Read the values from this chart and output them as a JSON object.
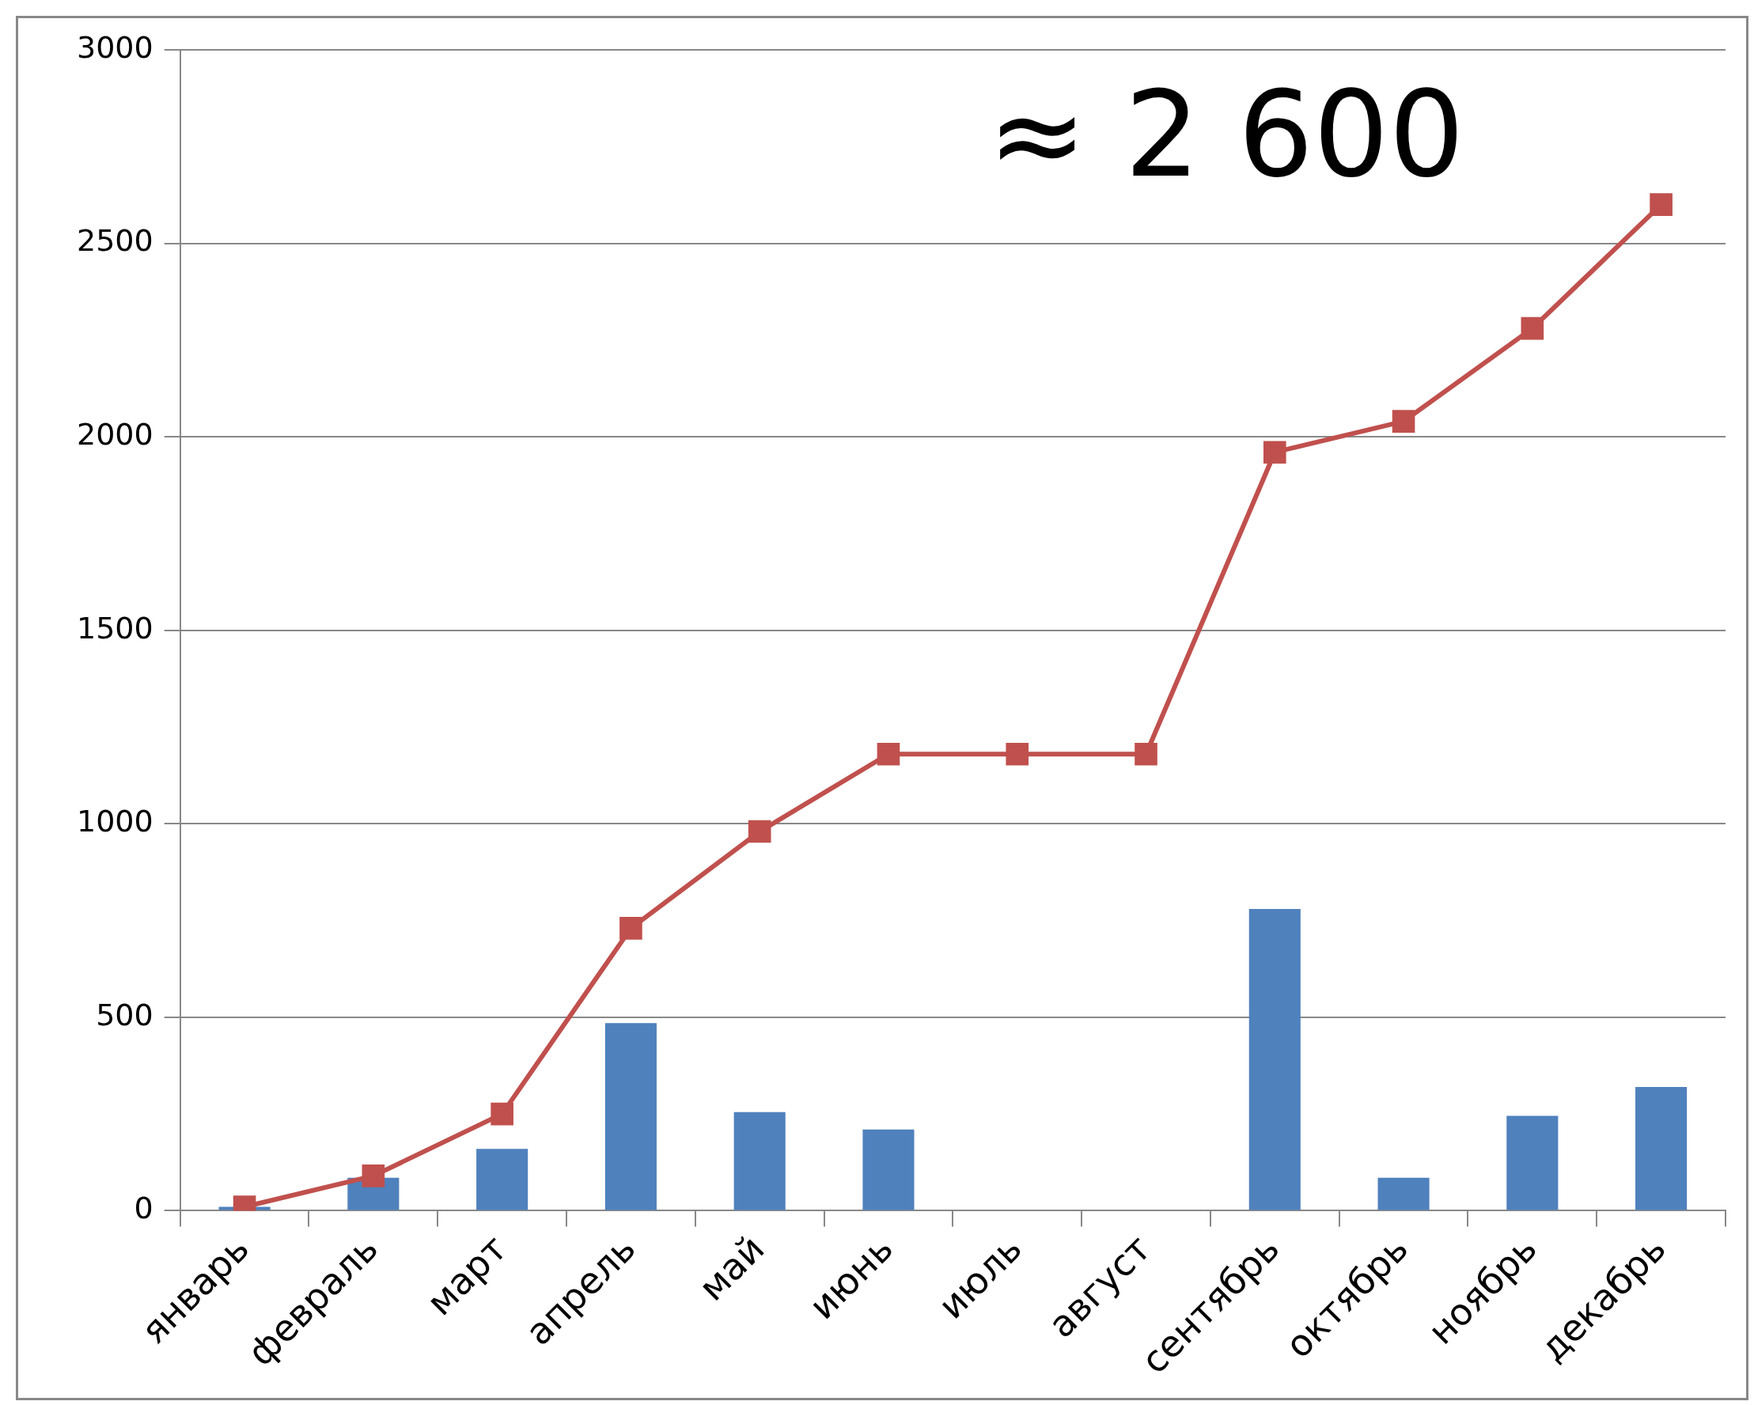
{
  "chart_data": {
    "type": "bar",
    "categories": [
      "январь",
      "февраль",
      "март",
      "апрель",
      "май",
      "июнь",
      "июль",
      "август",
      "сентябрь",
      "октябрь",
      "ноябрь",
      "декабрь"
    ],
    "series": [
      {
        "color": "#4f81bd",
        "values": [
          10,
          85,
          160,
          485,
          255,
          210,
          0,
          0,
          780,
          85,
          245,
          320
        ]
      },
      {
        "type": "line",
        "color": "#c0504d",
        "marker": "square",
        "values": [
          10,
          90,
          250,
          730,
          980,
          1180,
          1180,
          1180,
          1960,
          2040,
          2280,
          2600
        ]
      }
    ],
    "ylim": [
      0,
      3000
    ],
    "yticks": [
      0,
      500,
      1000,
      1500,
      2000,
      2500,
      3000
    ],
    "grid": "y",
    "legend": false,
    "annotations": [
      "≈ 2 600"
    ]
  }
}
